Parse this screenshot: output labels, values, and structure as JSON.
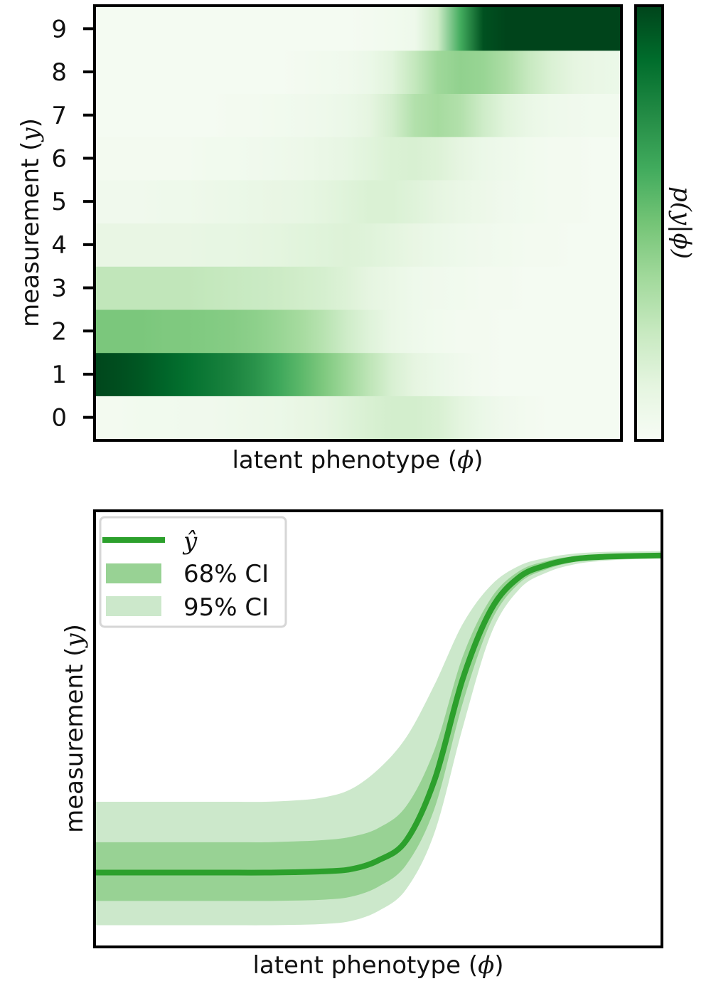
{
  "chart_data": [
    {
      "type": "heatmap",
      "xlabel_prefix": "latent phenotype (",
      "xlabel_symbol": "ϕ",
      "xlabel_suffix": ")",
      "ylabel_prefix": "measurement (",
      "ylabel_symbol": "y",
      "ylabel_suffix": ")",
      "colorbar_label": "p(y|ϕ)",
      "y_categories": [
        "0",
        "1",
        "2",
        "3",
        "4",
        "5",
        "6",
        "7",
        "8",
        "9"
      ],
      "x_ticks_shown": false,
      "colormap": [
        "#f7fcf5",
        "#e5f5e0",
        "#c7e9c0",
        "#a1d99b",
        "#74c476",
        "#41ab5d",
        "#238b45",
        "#006d2c",
        "#00441b"
      ],
      "rows": [
        {
          "y": "0",
          "intensity": [
            0.03,
            0.03,
            0.04,
            0.04,
            0.05,
            0.05,
            0.06,
            0.07,
            0.08,
            0.1,
            0.12,
            0.15,
            0.18,
            0.2,
            0.2,
            0.18,
            0.13,
            0.08,
            0.05,
            0.03,
            0.02,
            0.02,
            0.02,
            0.02
          ]
        },
        {
          "y": "1",
          "intensity": [
            0.99,
            0.97,
            0.94,
            0.9,
            0.86,
            0.82,
            0.78,
            0.72,
            0.64,
            0.56,
            0.47,
            0.38,
            0.28,
            0.18,
            0.12,
            0.08,
            0.05,
            0.03,
            0.02,
            0.02,
            0.02,
            0.02,
            0.02,
            0.02
          ]
        },
        {
          "y": "2",
          "intensity": [
            0.48,
            0.48,
            0.48,
            0.47,
            0.47,
            0.46,
            0.45,
            0.43,
            0.4,
            0.36,
            0.3,
            0.22,
            0.15,
            0.09,
            0.06,
            0.04,
            0.03,
            0.03,
            0.02,
            0.02,
            0.02,
            0.02,
            0.02,
            0.02
          ]
        },
        {
          "y": "3",
          "intensity": [
            0.27,
            0.27,
            0.27,
            0.27,
            0.27,
            0.26,
            0.25,
            0.24,
            0.23,
            0.21,
            0.19,
            0.16,
            0.12,
            0.09,
            0.06,
            0.05,
            0.04,
            0.03,
            0.03,
            0.02,
            0.02,
            0.02,
            0.02,
            0.02
          ]
        },
        {
          "y": "4",
          "intensity": [
            0.1,
            0.1,
            0.1,
            0.1,
            0.1,
            0.11,
            0.11,
            0.12,
            0.13,
            0.14,
            0.15,
            0.16,
            0.15,
            0.13,
            0.1,
            0.08,
            0.06,
            0.05,
            0.04,
            0.03,
            0.03,
            0.02,
            0.02,
            0.02
          ]
        },
        {
          "y": "5",
          "intensity": [
            0.05,
            0.05,
            0.05,
            0.06,
            0.06,
            0.07,
            0.08,
            0.09,
            0.1,
            0.11,
            0.13,
            0.15,
            0.17,
            0.17,
            0.15,
            0.12,
            0.09,
            0.07,
            0.05,
            0.04,
            0.03,
            0.03,
            0.02,
            0.02
          ]
        },
        {
          "y": "6",
          "intensity": [
            0.03,
            0.03,
            0.03,
            0.03,
            0.03,
            0.04,
            0.04,
            0.05,
            0.06,
            0.07,
            0.09,
            0.11,
            0.14,
            0.17,
            0.18,
            0.16,
            0.12,
            0.08,
            0.06,
            0.04,
            0.03,
            0.03,
            0.02,
            0.02
          ]
        },
        {
          "y": "7",
          "intensity": [
            0.02,
            0.02,
            0.02,
            0.02,
            0.02,
            0.02,
            0.03,
            0.03,
            0.04,
            0.05,
            0.06,
            0.08,
            0.12,
            0.2,
            0.32,
            0.36,
            0.32,
            0.22,
            0.14,
            0.09,
            0.06,
            0.05,
            0.04,
            0.04
          ]
        },
        {
          "y": "8",
          "intensity": [
            0.02,
            0.02,
            0.02,
            0.02,
            0.02,
            0.02,
            0.02,
            0.02,
            0.02,
            0.03,
            0.04,
            0.05,
            0.08,
            0.14,
            0.26,
            0.38,
            0.42,
            0.4,
            0.34,
            0.25,
            0.17,
            0.12,
            0.09,
            0.08
          ]
        },
        {
          "y": "9",
          "intensity": [
            0.02,
            0.02,
            0.02,
            0.02,
            0.02,
            0.02,
            0.02,
            0.02,
            0.02,
            0.02,
            0.02,
            0.02,
            0.03,
            0.04,
            0.06,
            0.22,
            0.62,
            0.96,
            1.0,
            1.0,
            1.0,
            1.0,
            1.0,
            1.0
          ]
        }
      ]
    },
    {
      "type": "line",
      "xlabel_prefix": "latent phenotype (",
      "xlabel_symbol": "ϕ",
      "xlabel_suffix": ")",
      "ylabel_prefix": "measurement (",
      "ylabel_symbol": "y",
      "ylabel_suffix": ")",
      "x_ticks_shown": false,
      "y_ticks_shown": false,
      "legend_placement": "upper-left",
      "grid": false,
      "series": [
        {
          "name": "ŷ",
          "color": "#2ca02c",
          "role": "mean",
          "x": [
            0.0,
            0.05,
            0.1,
            0.15,
            0.2,
            0.25,
            0.3,
            0.35,
            0.4,
            0.45,
            0.5,
            0.55,
            0.6,
            0.65,
            0.7,
            0.75,
            0.8,
            0.85,
            0.9,
            0.95,
            1.0
          ],
          "y": [
            1.0,
            1.0,
            1.0,
            1.0,
            1.0,
            1.0,
            1.0,
            1.01,
            1.03,
            1.08,
            1.3,
            1.8,
            3.3,
            5.8,
            7.5,
            8.3,
            8.6,
            8.75,
            8.8,
            8.82,
            8.83
          ]
        },
        {
          "name": "68% CI",
          "color": "#98d294",
          "role": "band",
          "x": [
            0.0,
            0.05,
            0.1,
            0.15,
            0.2,
            0.25,
            0.3,
            0.35,
            0.4,
            0.45,
            0.5,
            0.55,
            0.6,
            0.65,
            0.7,
            0.75,
            0.8,
            0.85,
            0.9,
            0.95,
            1.0
          ],
          "lower": [
            0.3,
            0.3,
            0.3,
            0.3,
            0.3,
            0.3,
            0.3,
            0.31,
            0.33,
            0.4,
            0.65,
            1.2,
            2.6,
            5.2,
            7.2,
            8.15,
            8.5,
            8.68,
            8.75,
            8.78,
            8.8
          ],
          "upper": [
            1.75,
            1.75,
            1.75,
            1.75,
            1.75,
            1.75,
            1.75,
            1.77,
            1.8,
            1.88,
            2.1,
            2.65,
            4.05,
            6.35,
            7.78,
            8.45,
            8.7,
            8.82,
            8.86,
            8.87,
            8.88
          ]
        },
        {
          "name": "95% CI",
          "color": "#cce8cb",
          "role": "band",
          "x": [
            0.0,
            0.05,
            0.1,
            0.15,
            0.2,
            0.25,
            0.3,
            0.35,
            0.4,
            0.45,
            0.5,
            0.55,
            0.6,
            0.65,
            0.7,
            0.75,
            0.8,
            0.85,
            0.9,
            0.95,
            1.0
          ],
          "lower": [
            -0.3,
            -0.3,
            -0.3,
            -0.3,
            -0.3,
            -0.3,
            -0.3,
            -0.29,
            -0.27,
            -0.2,
            0.05,
            0.6,
            2.0,
            4.6,
            6.9,
            8.0,
            8.42,
            8.62,
            8.7,
            8.74,
            8.76
          ],
          "upper": [
            2.75,
            2.75,
            2.75,
            2.75,
            2.75,
            2.75,
            2.75,
            2.78,
            2.85,
            3.05,
            3.55,
            4.35,
            5.65,
            7.15,
            8.1,
            8.58,
            8.78,
            8.88,
            8.92,
            8.93,
            8.94
          ]
        }
      ],
      "ylim": [
        -0.8,
        9.9
      ],
      "xlim": [
        0,
        1
      ]
    }
  ]
}
